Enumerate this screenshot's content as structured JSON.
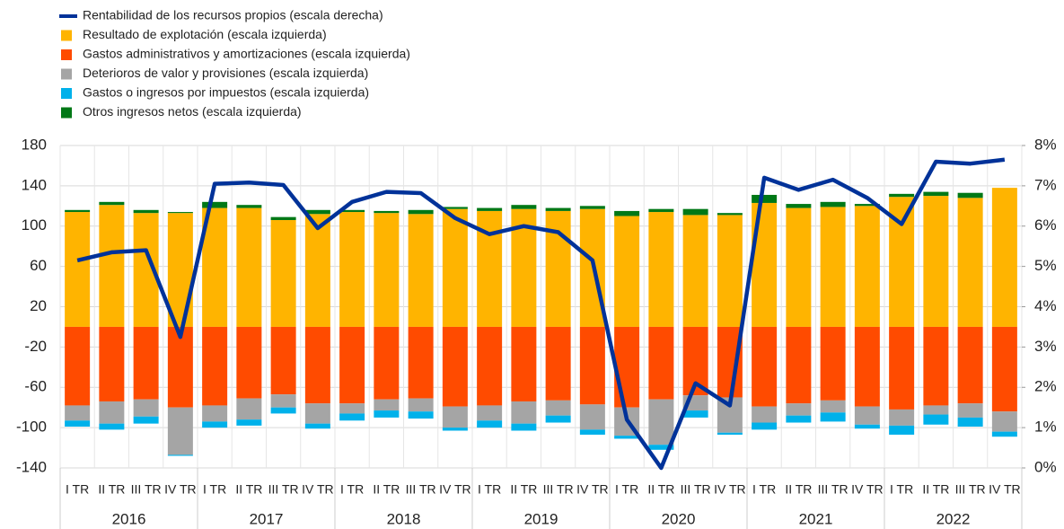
{
  "chart_data": {
    "type": "bar",
    "categories": [
      "I TR",
      "II TR",
      "III TR",
      "IV TR",
      "I TR",
      "II TR",
      "III TR",
      "IV TR",
      "I TR",
      "II TR",
      "III TR",
      "IV TR",
      "I TR",
      "II TR",
      "III TR",
      "IV TR",
      "I TR",
      "II TR",
      "III TR",
      "IV TR",
      "I TR",
      "II TR",
      "III TR",
      "IV TR",
      "I TR",
      "II TR",
      "III TR",
      "IV TR"
    ],
    "groups": [
      "2016",
      "2017",
      "2018",
      "2019",
      "2020",
      "2021",
      "2022"
    ],
    "series": [
      {
        "name": "Rentabilidad de los recursos propios (escala derecha)",
        "type": "line",
        "axis": "y2",
        "color": "#003299",
        "values": [
          5.15,
          5.35,
          5.4,
          3.25,
          7.05,
          7.08,
          7.02,
          5.95,
          6.6,
          6.85,
          6.82,
          6.2,
          5.8,
          6.0,
          5.85,
          5.15,
          1.2,
          0.0,
          2.1,
          1.55,
          7.2,
          6.9,
          7.15,
          6.7,
          6.05,
          7.6,
          7.55,
          7.65
        ]
      },
      {
        "name": "Resultado de explotación (escala izquierda)",
        "type": "bar",
        "color": "#ffb400",
        "values": [
          114,
          121,
          113,
          113,
          118,
          118,
          106,
          112,
          114,
          113,
          112,
          117,
          115,
          117,
          115,
          117,
          110,
          114,
          111,
          111,
          123,
          118,
          119,
          120,
          129,
          130,
          128,
          138
        ]
      },
      {
        "name": "Gastos administrativos y amortizaciones (escala izquierda)",
        "type": "bar",
        "color": "#ff4b00",
        "values": [
          -78,
          -74,
          -72,
          -80,
          -78,
          -71,
          -67,
          -76,
          -76,
          -72,
          -71,
          -79,
          -78,
          -74,
          -73,
          -77,
          -80,
          -72,
          -68,
          -70,
          -79,
          -76,
          -73,
          -79,
          -82,
          -78,
          -76,
          -84
        ]
      },
      {
        "name": "Deterioros de valor y provisiones (escala izquierda)",
        "type": "bar",
        "color": "#a5a5a5",
        "values": [
          -15,
          -22,
          -17,
          -47,
          -16,
          -21,
          -13,
          -20,
          -10,
          -11,
          -13,
          -21,
          -15,
          -22,
          -15,
          -25,
          -28,
          -45,
          -15,
          -35,
          -16,
          -12,
          -12,
          -18,
          -16,
          -9,
          -14,
          -20
        ]
      },
      {
        "name": "Gastos o ingresos por impuestos (escala izquierda)",
        "type": "bar",
        "color": "#00b1ea",
        "values": [
          -6,
          -6,
          -7,
          -1,
          -6,
          -6,
          -6,
          -5,
          -7,
          -7,
          -7,
          -3,
          -7,
          -7,
          -7,
          -5,
          -3,
          -5,
          -7,
          -2,
          -7,
          -7,
          -9,
          -4,
          -9,
          -10,
          -9,
          -5
        ]
      },
      {
        "name": "Otros ingresos netos (escala izquierda)",
        "type": "bar",
        "color": "#007816",
        "values": [
          2,
          3,
          3,
          1,
          6,
          3,
          3,
          4,
          2,
          2,
          4,
          2,
          3,
          4,
          3,
          3,
          5,
          3,
          6,
          2,
          8,
          4,
          5,
          2,
          3,
          4,
          5,
          0
        ]
      }
    ],
    "ylim": [
      -140,
      180
    ],
    "yticks": [
      180,
      140,
      100,
      60,
      20,
      -20,
      -60,
      -100,
      -140
    ],
    "y2lim": [
      0,
      8
    ],
    "y2ticks": [
      {
        "value": 8,
        "label": "8%"
      },
      {
        "value": 7,
        "label": "7%"
      },
      {
        "value": 6,
        "label": "6%"
      },
      {
        "value": 5,
        "label": "5%"
      },
      {
        "value": 4,
        "label": "4%"
      },
      {
        "value": 3,
        "label": "3%"
      },
      {
        "value": 2,
        "label": "2%"
      },
      {
        "value": 1,
        "label": "1%"
      },
      {
        "value": 0,
        "label": "0%"
      }
    ],
    "grid": true,
    "legend": "top-left"
  }
}
